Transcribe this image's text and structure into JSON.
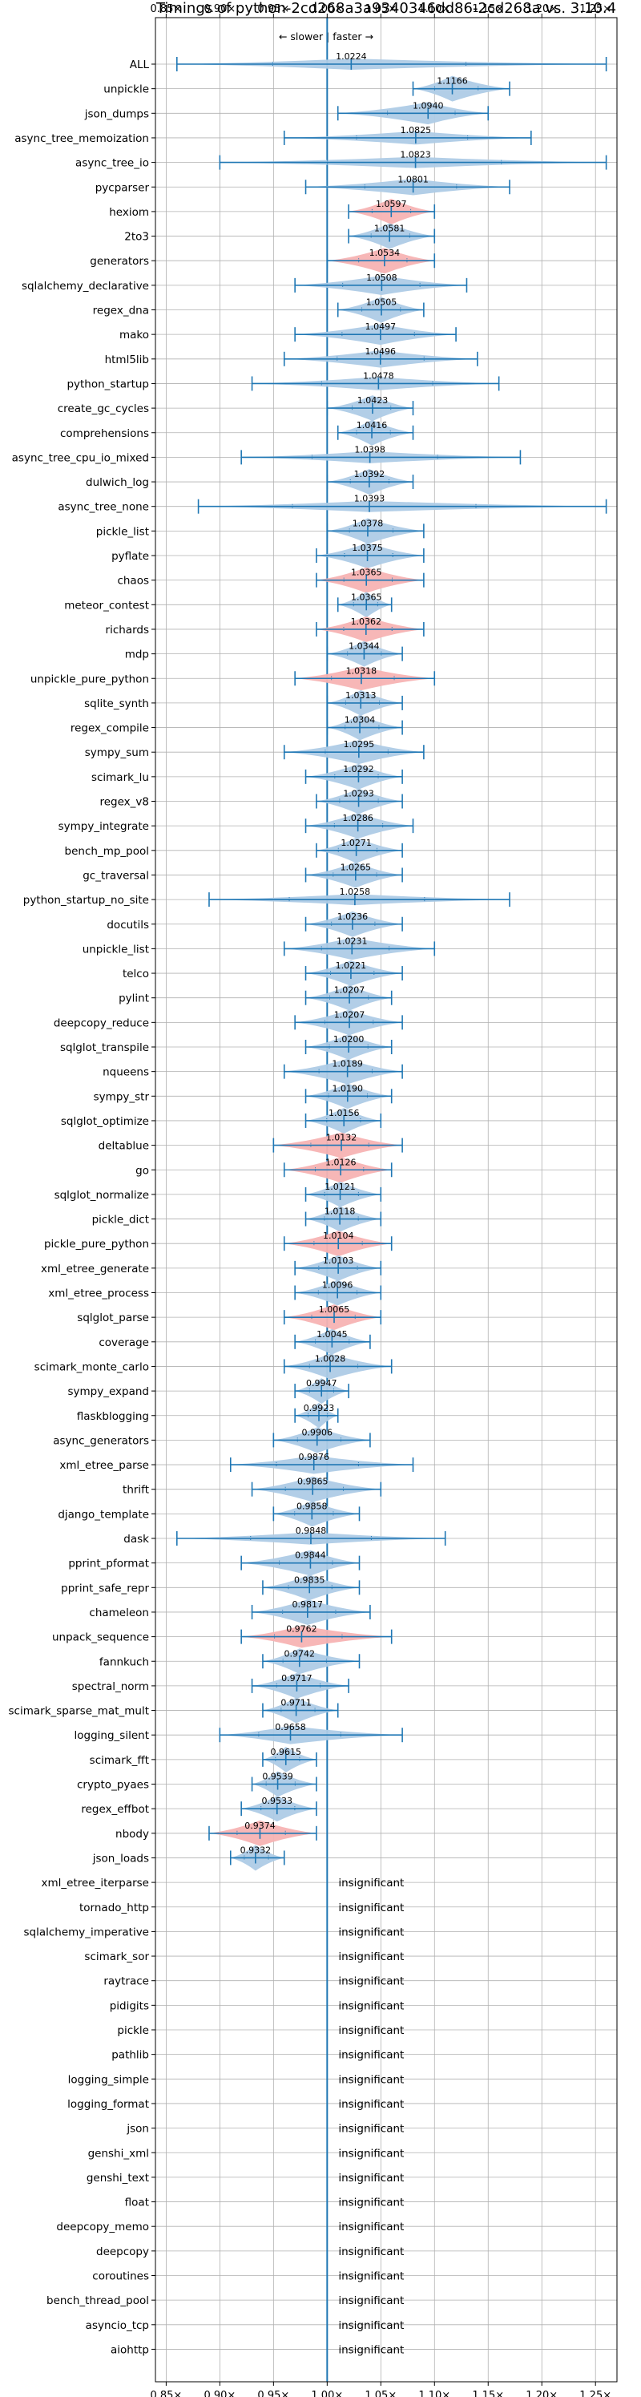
{
  "chart_data": {
    "type": "violin",
    "title": "Timings of python-2cd268a3a9340346dd86-2cd268a vs. 3.10.4",
    "direction_label": "← slower | faster →",
    "xlim": [
      0.84,
      1.27
    ],
    "x_ticks": [
      0.85,
      0.9,
      0.95,
      1.0,
      1.05,
      1.1,
      1.15,
      1.2,
      1.25
    ],
    "x_tick_labels": [
      "0.85×",
      "0.90×",
      "0.95×",
      "1.00×",
      "1.05×",
      "1.10×",
      "1.15×",
      "1.20×",
      "1.25×"
    ],
    "reference_line": 1.0,
    "grid": true,
    "colors": {
      "faster": "#aecbe6",
      "slower": "#f7b3b3",
      "whisker": "#1f77b4",
      "reference": "#1f77b4",
      "grid": "#b0b0b0"
    },
    "insignificant_label": "insignificant",
    "benchmarks": [
      {
        "name": "ALL",
        "value": 1.0224,
        "value_label": "1.0224",
        "low": 0.86,
        "high": 1.26,
        "color": "faster"
      },
      {
        "name": "unpickle",
        "value": 1.1166,
        "value_label": "1.1166",
        "low": 1.08,
        "high": 1.17,
        "color": "faster"
      },
      {
        "name": "json_dumps",
        "value": 1.094,
        "value_label": "1.0940",
        "low": 1.01,
        "high": 1.15,
        "color": "faster"
      },
      {
        "name": "async_tree_memoization",
        "value": 1.0825,
        "value_label": "1.0825",
        "low": 0.96,
        "high": 1.19,
        "color": "faster"
      },
      {
        "name": "async_tree_io",
        "value": 1.0823,
        "value_label": "1.0823",
        "low": 0.9,
        "high": 1.26,
        "color": "faster"
      },
      {
        "name": "pycparser",
        "value": 1.0801,
        "value_label": "1.0801",
        "low": 0.98,
        "high": 1.17,
        "color": "faster"
      },
      {
        "name": "hexiom",
        "value": 1.0597,
        "value_label": "1.0597",
        "low": 1.02,
        "high": 1.1,
        "color": "slower"
      },
      {
        "name": "2to3",
        "value": 1.0581,
        "value_label": "1.0581",
        "low": 1.02,
        "high": 1.1,
        "color": "faster"
      },
      {
        "name": "generators",
        "value": 1.0534,
        "value_label": "1.0534",
        "low": 1.0,
        "high": 1.1,
        "color": "slower"
      },
      {
        "name": "sqlalchemy_declarative",
        "value": 1.0508,
        "value_label": "1.0508",
        "low": 0.97,
        "high": 1.13,
        "color": "faster"
      },
      {
        "name": "regex_dna",
        "value": 1.0505,
        "value_label": "1.0505",
        "low": 1.01,
        "high": 1.09,
        "color": "faster"
      },
      {
        "name": "mako",
        "value": 1.0497,
        "value_label": "1.0497",
        "low": 0.97,
        "high": 1.12,
        "color": "faster"
      },
      {
        "name": "html5lib",
        "value": 1.0496,
        "value_label": "1.0496",
        "low": 0.96,
        "high": 1.14,
        "color": "faster"
      },
      {
        "name": "python_startup",
        "value": 1.0478,
        "value_label": "1.0478",
        "low": 0.93,
        "high": 1.16,
        "color": "faster"
      },
      {
        "name": "create_gc_cycles",
        "value": 1.0423,
        "value_label": "1.0423",
        "low": 1.0,
        "high": 1.08,
        "color": "faster"
      },
      {
        "name": "comprehensions",
        "value": 1.0416,
        "value_label": "1.0416",
        "low": 1.01,
        "high": 1.08,
        "color": "faster"
      },
      {
        "name": "async_tree_cpu_io_mixed",
        "value": 1.0398,
        "value_label": "1.0398",
        "low": 0.92,
        "high": 1.18,
        "color": "faster"
      },
      {
        "name": "dulwich_log",
        "value": 1.0392,
        "value_label": "1.0392",
        "low": 1.0,
        "high": 1.08,
        "color": "faster"
      },
      {
        "name": "async_tree_none",
        "value": 1.0393,
        "value_label": "1.0393",
        "low": 0.88,
        "high": 1.26,
        "color": "faster"
      },
      {
        "name": "pickle_list",
        "value": 1.0378,
        "value_label": "1.0378",
        "low": 1.0,
        "high": 1.09,
        "color": "faster"
      },
      {
        "name": "pyflate",
        "value": 1.0375,
        "value_label": "1.0375",
        "low": 0.99,
        "high": 1.09,
        "color": "faster"
      },
      {
        "name": "chaos",
        "value": 1.0365,
        "value_label": "1.0365",
        "low": 0.99,
        "high": 1.09,
        "color": "slower"
      },
      {
        "name": "meteor_contest",
        "value": 1.0365,
        "value_label": "1.0365",
        "low": 1.01,
        "high": 1.06,
        "color": "faster"
      },
      {
        "name": "richards",
        "value": 1.0362,
        "value_label": "1.0362",
        "low": 0.99,
        "high": 1.09,
        "color": "slower"
      },
      {
        "name": "mdp",
        "value": 1.0344,
        "value_label": "1.0344",
        "low": 1.0,
        "high": 1.07,
        "color": "faster"
      },
      {
        "name": "unpickle_pure_python",
        "value": 1.0318,
        "value_label": "1.0318",
        "low": 0.97,
        "high": 1.1,
        "color": "slower"
      },
      {
        "name": "sqlite_synth",
        "value": 1.0313,
        "value_label": "1.0313",
        "low": 1.0,
        "high": 1.07,
        "color": "faster"
      },
      {
        "name": "regex_compile",
        "value": 1.0304,
        "value_label": "1.0304",
        "low": 1.0,
        "high": 1.07,
        "color": "faster"
      },
      {
        "name": "sympy_sum",
        "value": 1.0295,
        "value_label": "1.0295",
        "low": 0.96,
        "high": 1.09,
        "color": "faster"
      },
      {
        "name": "scimark_lu",
        "value": 1.0292,
        "value_label": "1.0292",
        "low": 0.98,
        "high": 1.07,
        "color": "faster"
      },
      {
        "name": "regex_v8",
        "value": 1.0293,
        "value_label": "1.0293",
        "low": 0.99,
        "high": 1.07,
        "color": "faster"
      },
      {
        "name": "sympy_integrate",
        "value": 1.0286,
        "value_label": "1.0286",
        "low": 0.98,
        "high": 1.08,
        "color": "faster"
      },
      {
        "name": "bench_mp_pool",
        "value": 1.0271,
        "value_label": "1.0271",
        "low": 0.99,
        "high": 1.07,
        "color": "faster"
      },
      {
        "name": "gc_traversal",
        "value": 1.0265,
        "value_label": "1.0265",
        "low": 0.98,
        "high": 1.07,
        "color": "faster"
      },
      {
        "name": "python_startup_no_site",
        "value": 1.0258,
        "value_label": "1.0258",
        "low": 0.89,
        "high": 1.17,
        "color": "faster"
      },
      {
        "name": "docutils",
        "value": 1.0236,
        "value_label": "1.0236",
        "low": 0.98,
        "high": 1.07,
        "color": "faster"
      },
      {
        "name": "unpickle_list",
        "value": 1.0231,
        "value_label": "1.0231",
        "low": 0.96,
        "high": 1.1,
        "color": "faster"
      },
      {
        "name": "telco",
        "value": 1.0221,
        "value_label": "1.0221",
        "low": 0.98,
        "high": 1.07,
        "color": "faster"
      },
      {
        "name": "pylint",
        "value": 1.0207,
        "value_label": "1.0207",
        "low": 0.98,
        "high": 1.06,
        "color": "faster"
      },
      {
        "name": "deepcopy_reduce",
        "value": 1.0207,
        "value_label": "1.0207",
        "low": 0.97,
        "high": 1.07,
        "color": "faster"
      },
      {
        "name": "sqlglot_transpile",
        "value": 1.02,
        "value_label": "1.0200",
        "low": 0.98,
        "high": 1.06,
        "color": "faster"
      },
      {
        "name": "nqueens",
        "value": 1.0189,
        "value_label": "1.0189",
        "low": 0.96,
        "high": 1.07,
        "color": "faster"
      },
      {
        "name": "sympy_str",
        "value": 1.019,
        "value_label": "1.0190",
        "low": 0.98,
        "high": 1.06,
        "color": "faster"
      },
      {
        "name": "sqlglot_optimize",
        "value": 1.0156,
        "value_label": "1.0156",
        "low": 0.98,
        "high": 1.05,
        "color": "faster"
      },
      {
        "name": "deltablue",
        "value": 1.0132,
        "value_label": "1.0132",
        "low": 0.95,
        "high": 1.07,
        "color": "slower"
      },
      {
        "name": "go",
        "value": 1.0126,
        "value_label": "1.0126",
        "low": 0.96,
        "high": 1.06,
        "color": "slower"
      },
      {
        "name": "sqlglot_normalize",
        "value": 1.0121,
        "value_label": "1.0121",
        "low": 0.98,
        "high": 1.05,
        "color": "faster"
      },
      {
        "name": "pickle_dict",
        "value": 1.0118,
        "value_label": "1.0118",
        "low": 0.98,
        "high": 1.05,
        "color": "faster"
      },
      {
        "name": "pickle_pure_python",
        "value": 1.0104,
        "value_label": "1.0104",
        "low": 0.96,
        "high": 1.06,
        "color": "slower"
      },
      {
        "name": "xml_etree_generate",
        "value": 1.0103,
        "value_label": "1.0103",
        "low": 0.97,
        "high": 1.05,
        "color": "faster"
      },
      {
        "name": "xml_etree_process",
        "value": 1.0096,
        "value_label": "1.0096",
        "low": 0.97,
        "high": 1.05,
        "color": "faster"
      },
      {
        "name": "sqlglot_parse",
        "value": 1.0065,
        "value_label": "1.0065",
        "low": 0.96,
        "high": 1.05,
        "color": "slower"
      },
      {
        "name": "coverage",
        "value": 1.0045,
        "value_label": "1.0045",
        "low": 0.97,
        "high": 1.04,
        "color": "faster"
      },
      {
        "name": "scimark_monte_carlo",
        "value": 1.0028,
        "value_label": "1.0028",
        "low": 0.96,
        "high": 1.06,
        "color": "faster"
      },
      {
        "name": "sympy_expand",
        "value": 0.9947,
        "value_label": "0.9947",
        "low": 0.97,
        "high": 1.02,
        "color": "faster"
      },
      {
        "name": "flaskblogging",
        "value": 0.9923,
        "value_label": "0.9923",
        "low": 0.97,
        "high": 1.01,
        "color": "faster"
      },
      {
        "name": "async_generators",
        "value": 0.9906,
        "value_label": "0.9906",
        "low": 0.95,
        "high": 1.04,
        "color": "faster"
      },
      {
        "name": "xml_etree_parse",
        "value": 0.9876,
        "value_label": "0.9876",
        "low": 0.91,
        "high": 1.08,
        "color": "faster"
      },
      {
        "name": "thrift",
        "value": 0.9865,
        "value_label": "0.9865",
        "low": 0.93,
        "high": 1.05,
        "color": "faster"
      },
      {
        "name": "django_template",
        "value": 0.9858,
        "value_label": "0.9858",
        "low": 0.95,
        "high": 1.03,
        "color": "faster"
      },
      {
        "name": "dask",
        "value": 0.9848,
        "value_label": "0.9848",
        "low": 0.86,
        "high": 1.11,
        "color": "faster"
      },
      {
        "name": "pprint_pformat",
        "value": 0.9844,
        "value_label": "0.9844",
        "low": 0.92,
        "high": 1.03,
        "color": "faster"
      },
      {
        "name": "pprint_safe_repr",
        "value": 0.9835,
        "value_label": "0.9835",
        "low": 0.94,
        "high": 1.03,
        "color": "faster"
      },
      {
        "name": "chameleon",
        "value": 0.9817,
        "value_label": "0.9817",
        "low": 0.93,
        "high": 1.04,
        "color": "faster"
      },
      {
        "name": "unpack_sequence",
        "value": 0.9762,
        "value_label": "0.9762",
        "low": 0.92,
        "high": 1.06,
        "color": "slower"
      },
      {
        "name": "fannkuch",
        "value": 0.9742,
        "value_label": "0.9742",
        "low": 0.94,
        "high": 1.03,
        "color": "faster"
      },
      {
        "name": "spectral_norm",
        "value": 0.9717,
        "value_label": "0.9717",
        "low": 0.93,
        "high": 1.02,
        "color": "faster"
      },
      {
        "name": "scimark_sparse_mat_mult",
        "value": 0.9711,
        "value_label": "0.9711",
        "low": 0.94,
        "high": 1.01,
        "color": "faster"
      },
      {
        "name": "logging_silent",
        "value": 0.9658,
        "value_label": "0.9658",
        "low": 0.9,
        "high": 1.07,
        "color": "faster"
      },
      {
        "name": "scimark_fft",
        "value": 0.9615,
        "value_label": "0.9615",
        "low": 0.94,
        "high": 0.99,
        "color": "faster"
      },
      {
        "name": "crypto_pyaes",
        "value": 0.9539,
        "value_label": "0.9539",
        "low": 0.93,
        "high": 0.99,
        "color": "faster"
      },
      {
        "name": "regex_effbot",
        "value": 0.9533,
        "value_label": "0.9533",
        "low": 0.92,
        "high": 0.99,
        "color": "faster"
      },
      {
        "name": "nbody",
        "value": 0.9374,
        "value_label": "0.9374",
        "low": 0.89,
        "high": 0.99,
        "color": "slower"
      },
      {
        "name": "json_loads",
        "value": 0.9332,
        "value_label": "0.9332",
        "low": 0.91,
        "high": 0.96,
        "color": "faster"
      },
      {
        "name": "xml_etree_iterparse",
        "insignificant": true
      },
      {
        "name": "tornado_http",
        "insignificant": true
      },
      {
        "name": "sqlalchemy_imperative",
        "insignificant": true
      },
      {
        "name": "scimark_sor",
        "insignificant": true
      },
      {
        "name": "raytrace",
        "insignificant": true
      },
      {
        "name": "pidigits",
        "insignificant": true
      },
      {
        "name": "pickle",
        "insignificant": true
      },
      {
        "name": "pathlib",
        "insignificant": true
      },
      {
        "name": "logging_simple",
        "insignificant": true
      },
      {
        "name": "logging_format",
        "insignificant": true
      },
      {
        "name": "json",
        "insignificant": true
      },
      {
        "name": "genshi_xml",
        "insignificant": true
      },
      {
        "name": "genshi_text",
        "insignificant": true
      },
      {
        "name": "float",
        "insignificant": true
      },
      {
        "name": "deepcopy_memo",
        "insignificant": true
      },
      {
        "name": "deepcopy",
        "insignificant": true
      },
      {
        "name": "coroutines",
        "insignificant": true
      },
      {
        "name": "bench_thread_pool",
        "insignificant": true
      },
      {
        "name": "asyncio_tcp",
        "insignificant": true
      },
      {
        "name": "aiohttp",
        "insignificant": true
      }
    ]
  }
}
